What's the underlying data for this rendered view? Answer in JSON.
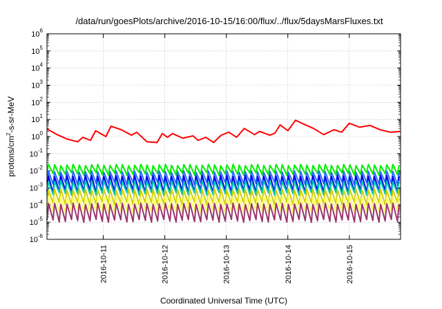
{
  "chart_data": {
    "type": "line",
    "title": "/data/run/goesPlots/archive/2016-10-15/16:00/flux/../flux/5daysMarsFluxes.txt",
    "xlabel": "Coordinated Universal Time (UTC)",
    "ylabel_parts": {
      "base": "protons/cm",
      "exp": "2",
      "tail": "-s-sr-MeV"
    },
    "yscale": "log",
    "ylim_exp": [
      -6,
      6
    ],
    "y_ticks": [
      {
        "base": "10",
        "exp": "-6"
      },
      {
        "base": "10",
        "exp": "-5"
      },
      {
        "base": "10",
        "exp": "-4"
      },
      {
        "base": "10",
        "exp": "-3"
      },
      {
        "base": "10",
        "exp": "-2"
      },
      {
        "base": "10",
        "exp": "-1"
      },
      {
        "base": "10",
        "exp": "0"
      },
      {
        "base": "10",
        "exp": "1"
      },
      {
        "base": "10",
        "exp": "2"
      },
      {
        "base": "10",
        "exp": "3"
      },
      {
        "base": "10",
        "exp": "4"
      },
      {
        "base": "10",
        "exp": "5"
      },
      {
        "base": "10",
        "exp": "6"
      }
    ],
    "xlim": [
      "2016-10-10 02:00",
      "2016-10-15 20:00"
    ],
    "x_ticks": [
      "2016-10-11",
      "2016-10-12",
      "2016-10-13",
      "2016-10-14",
      "2016-10-15"
    ],
    "grid": true,
    "series": [
      {
        "color": "#ff0000",
        "x": [
          "2016-10-10 02:00",
          "2016-10-10 06:00",
          "2016-10-10 10:00",
          "2016-10-10 14:00",
          "2016-10-10 16:00",
          "2016-10-10 19:00",
          "2016-10-10 21:00",
          "2016-10-11 01:00",
          "2016-10-11 03:00",
          "2016-10-11 07:00",
          "2016-10-11 11:00",
          "2016-10-11 13:00",
          "2016-10-11 17:00",
          "2016-10-11 21:00",
          "2016-10-11 23:00",
          "2016-10-12 01:00",
          "2016-10-12 03:00",
          "2016-10-12 07:00",
          "2016-10-12 11:00",
          "2016-10-12 13:00",
          "2016-10-12 16:00",
          "2016-10-12 19:00",
          "2016-10-12 22:00",
          "2016-10-13 01:00",
          "2016-10-13 04:00",
          "2016-10-13 07:00",
          "2016-10-13 11:00",
          "2016-10-13 13:00",
          "2016-10-13 17:00",
          "2016-10-13 19:00",
          "2016-10-13 21:00",
          "2016-10-14 00:00",
          "2016-10-14 03:00",
          "2016-10-14 06:00",
          "2016-10-14 10:00",
          "2016-10-14 14:00",
          "2016-10-14 18:00",
          "2016-10-14 21:00",
          "2016-10-15 00:00",
          "2016-10-15 04:00",
          "2016-10-15 08:00",
          "2016-10-15 12:00",
          "2016-10-15 16:00",
          "2016-10-15 20:00"
        ],
        "values": [
          2.8,
          1.3,
          0.7,
          0.5,
          0.9,
          0.6,
          2.2,
          1.0,
          4.0,
          2.5,
          1.2,
          1.8,
          0.5,
          0.45,
          1.5,
          0.9,
          1.5,
          0.8,
          1.1,
          0.6,
          0.9,
          0.45,
          1.2,
          1.8,
          0.9,
          3.0,
          1.3,
          2.0,
          1.2,
          1.6,
          4.8,
          2.2,
          9.0,
          5.5,
          3.0,
          1.3,
          2.5,
          1.8,
          6.0,
          3.5,
          4.5,
          2.5,
          1.8,
          2.0
        ]
      },
      {
        "color": "#00ee00",
        "sawtooth": {
          "peak": 0.022,
          "trough": 0.0065
        }
      },
      {
        "color": "#2a6fff",
        "sawtooth": {
          "peak": 0.009,
          "trough": 0.0018
        }
      },
      {
        "color": "#0000ee",
        "sawtooth": {
          "peak": 0.005,
          "trough": 0.0006
        }
      },
      {
        "color": "#00c9b0",
        "sawtooth": {
          "peak": 0.0025,
          "trough": 0.00045
        }
      },
      {
        "color": "#cfcf00",
        "sawtooth": {
          "peak": 0.0008,
          "trough": 0.00012
        }
      },
      {
        "color": "#ffff66",
        "sawtooth": {
          "peak": 0.0003,
          "trough": 4e-05
        }
      },
      {
        "color": "#9a3570",
        "sawtooth": {
          "peak": 0.00012,
          "trough": 1.2e-05
        }
      }
    ]
  }
}
